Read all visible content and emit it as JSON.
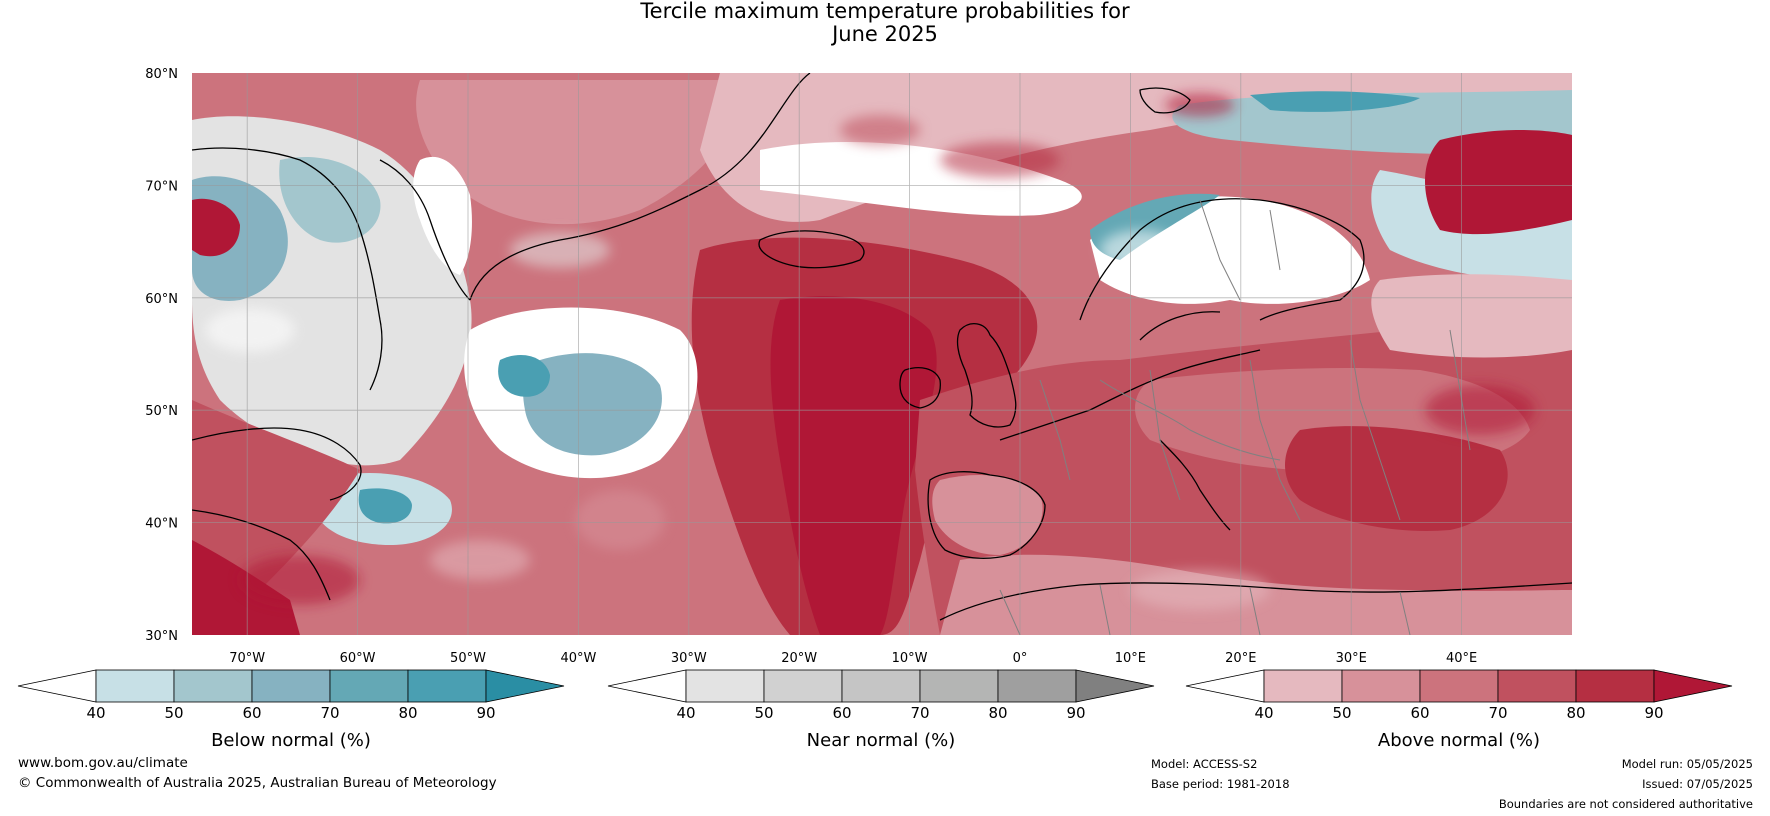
{
  "title": {
    "line1": "Tercile maximum temperature probabilities for",
    "line2": "June 2025"
  },
  "map": {
    "lat_labels": [
      "80°N",
      "70°N",
      "60°N",
      "50°N",
      "40°N",
      "30°N"
    ],
    "lon_labels": [
      "70°W",
      "60°W",
      "50°W",
      "40°W",
      "30°W",
      "20°W",
      "10°W",
      "0°",
      "10°E",
      "20°E",
      "30°E",
      "40°E"
    ],
    "lat_range": [
      30,
      80
    ],
    "lon_range": [
      -75,
      50
    ],
    "colors": {
      "land_outline": "#000000",
      "border": "#808080",
      "grid": "#999999",
      "ocean_above": "#b52137"
    }
  },
  "legends": [
    {
      "label": "Below normal (%)",
      "ticks": [
        "40",
        "50",
        "60",
        "70",
        "80",
        "90"
      ],
      "colors": [
        "#ffffff",
        "#c7e0e6",
        "#a3c6cd",
        "#86b2c1",
        "#64a8b5",
        "#4a9fb2",
        "#2a8ea4"
      ]
    },
    {
      "label": "Near normal (%)",
      "ticks": [
        "40",
        "50",
        "60",
        "70",
        "80",
        "90"
      ],
      "colors": [
        "#ffffff",
        "#e3e3e3",
        "#d1d1d1",
        "#c5c5c5",
        "#b4b5b4",
        "#9f9f9f",
        "#808080"
      ]
    },
    {
      "label": "Above normal (%)",
      "ticks": [
        "40",
        "50",
        "60",
        "70",
        "80",
        "90"
      ],
      "colors": [
        "#ffffff",
        "#e5b9bf",
        "#d7919a",
        "#cc737d",
        "#c0515f",
        "#b52f42",
        "#b01736"
      ]
    }
  ],
  "footer": {
    "website": "www.bom.gov.au/climate",
    "copyright": "© Commonwealth of Australia 2025, Australian Bureau of Meteorology",
    "model": "Model: ACCESS-S2",
    "base_period": "Base period: 1981-2018",
    "model_run": "Model run: 05/05/2025",
    "issued": "Issued: 07/05/2025",
    "disclaimer": "Boundaries are not considered authoritative"
  }
}
